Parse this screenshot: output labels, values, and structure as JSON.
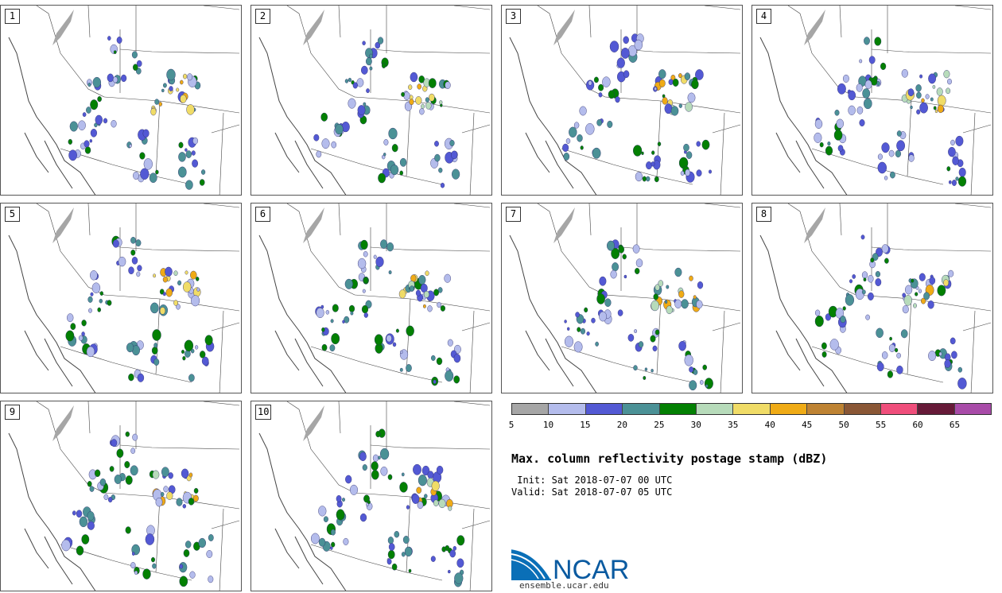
{
  "panels": [
    {
      "label": "1"
    },
    {
      "label": "2"
    },
    {
      "label": "3"
    },
    {
      "label": "4"
    },
    {
      "label": "5"
    },
    {
      "label": "6"
    },
    {
      "label": "7"
    },
    {
      "label": "8"
    },
    {
      "label": "9"
    },
    {
      "label": "10"
    }
  ],
  "colorbar": {
    "colors": [
      "#a6a6a6",
      "#b4bcec",
      "#5359d4",
      "#4b9196",
      "#038003",
      "#b7dbba",
      "#f0dc67",
      "#efab16",
      "#be8333",
      "#8a5736",
      "#ef4e7b",
      "#661a38",
      "#a84ba8"
    ],
    "ticks": [
      "5",
      "10",
      "15",
      "20",
      "25",
      "30",
      "35",
      "40",
      "45",
      "50",
      "55",
      "60",
      "65"
    ]
  },
  "title": "Max. column reflectivity postage stamp (dBZ)",
  "init_text": " Init: Sat 2018-07-07 00 UTC",
  "valid_text": "Valid: Sat 2018-07-07 05 UTC",
  "logo": {
    "text": "NCAR",
    "url": "ensemble.ucar.edu"
  }
}
